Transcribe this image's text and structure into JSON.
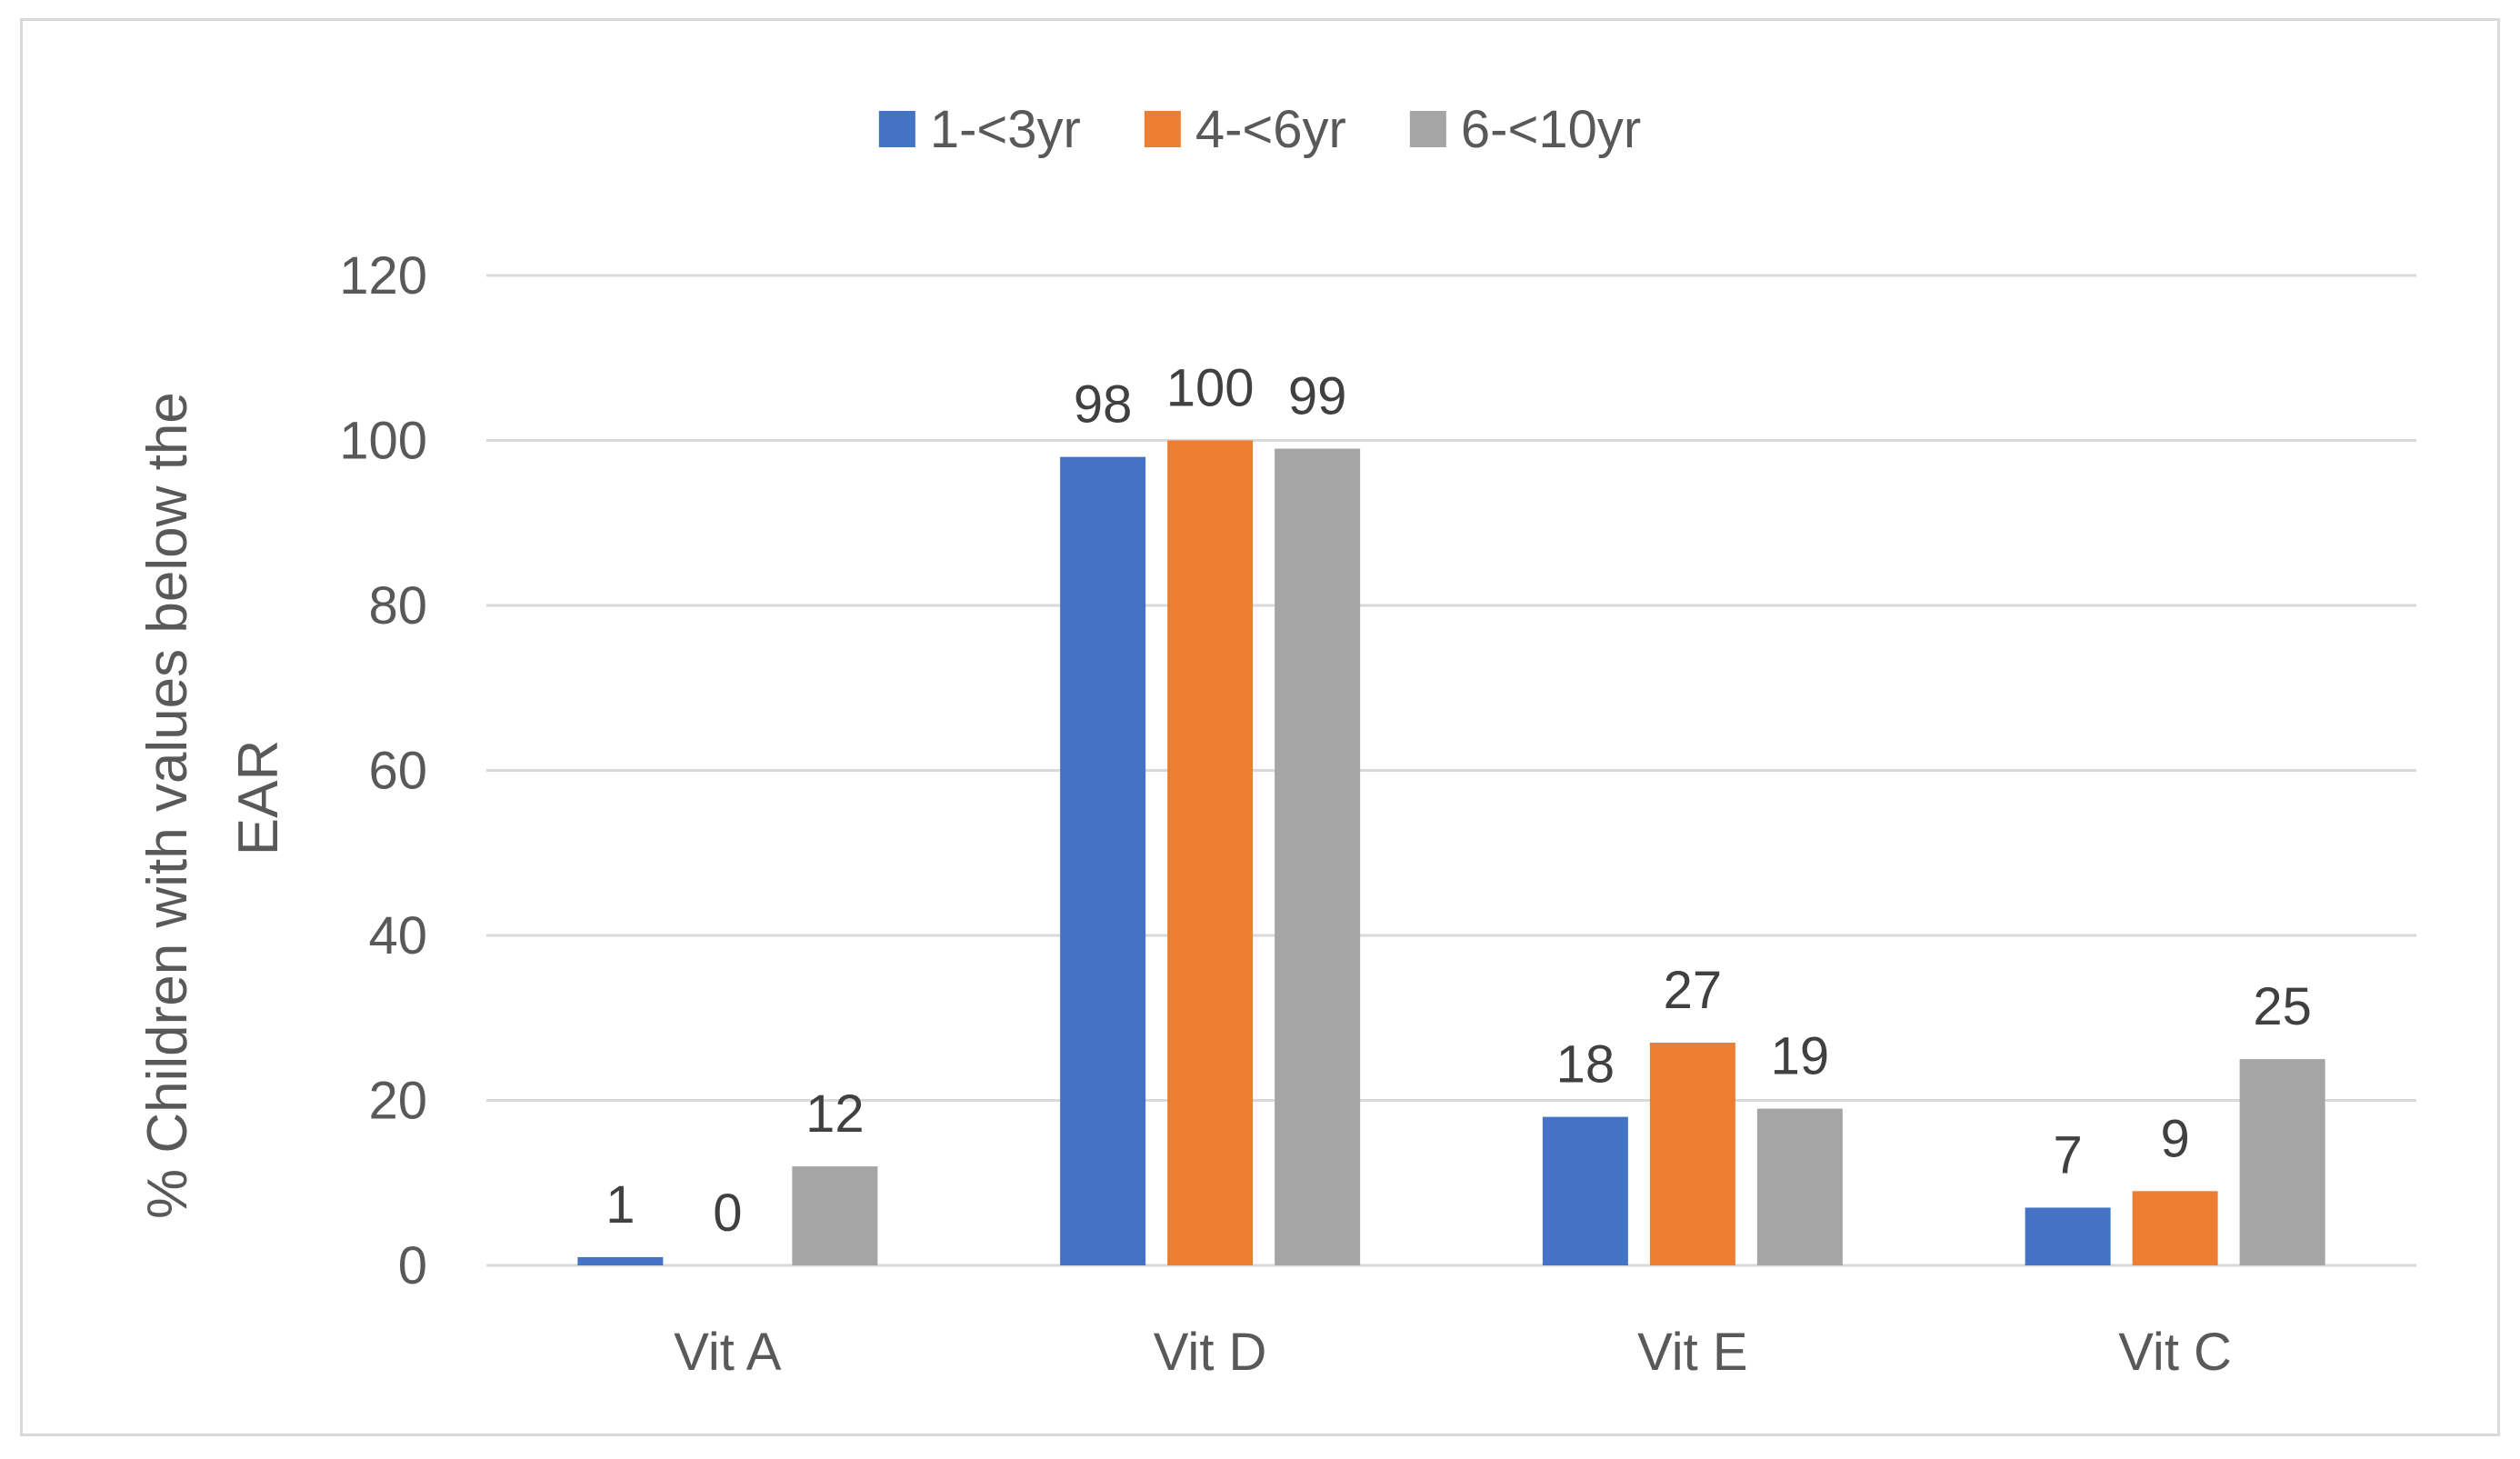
{
  "chart_data": {
    "type": "bar",
    "title": "",
    "xlabel": "",
    "ylabel": "% Children with values below the EAR",
    "ylabel_lines": [
      "% Children with values below the",
      "EAR"
    ],
    "categories": [
      "Vit A",
      "Vit D",
      "Vit E",
      "Vit C"
    ],
    "series": [
      {
        "name": "1-<3yr",
        "color": "#4472c4",
        "values": [
          1,
          98,
          18,
          7
        ]
      },
      {
        "name": "4-<6yr",
        "color": "#ed7d31",
        "values": [
          0,
          100,
          27,
          9
        ]
      },
      {
        "name": "6-<10yr",
        "color": "#a5a5a5",
        "values": [
          12,
          99,
          19,
          25
        ]
      }
    ],
    "ylim": [
      0,
      120
    ],
    "yticks": [
      0,
      20,
      40,
      60,
      80,
      100,
      120
    ],
    "grid": true,
    "legend_position": "top-center",
    "data_labels": true
  }
}
